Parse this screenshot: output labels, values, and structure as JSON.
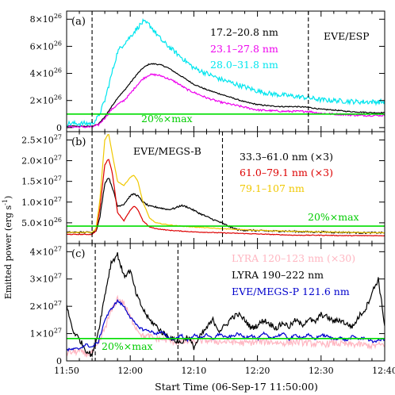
{
  "figure": {
    "ylabel": "Emitted power (erg s",
    "ylabel_sup": "-1",
    "ylabel_close": ")",
    "xlabel": "Start Time (06-Sep-17 11:50:00)",
    "x_ticks": [
      "11:50",
      "12:00",
      "12:10",
      "12:20",
      "12:30",
      "12:40"
    ]
  },
  "chart_data": [
    {
      "panel": "(a)",
      "type": "line",
      "instrument_label": "EVE/ESP",
      "threshold_label": "20%×max",
      "xlim": [
        0,
        50
      ],
      "ylim": [
        -3e+25,
        8.6e+26
      ],
      "y_ticks": [
        {
          "mant": "0",
          "exp": "",
          "v": 0
        },
        {
          "mant": "2×10",
          "exp": "26",
          "v": 2e+26
        },
        {
          "mant": "4×10",
          "exp": "26",
          "v": 4e+26
        },
        {
          "mant": "6×10",
          "exp": "26",
          "v": 6e+26
        },
        {
          "mant": "8×10",
          "exp": "26",
          "v": 8e+26
        }
      ],
      "threshold": 1e+26,
      "vlines": [
        4.0,
        38.0
      ],
      "series": [
        {
          "name": "17.2–20.8 nm",
          "color": "#000000",
          "noise": 4e+24,
          "x": [
            0,
            4,
            5,
            6,
            7,
            8,
            9,
            10,
            11,
            12,
            13,
            14,
            15,
            16,
            17,
            18,
            19,
            20,
            22,
            24,
            26,
            28,
            30,
            32,
            34,
            36,
            38,
            40,
            42,
            44,
            46,
            48,
            50
          ],
          "y": [
            1e+25,
            1e+25,
            2.5e+25,
            8e+25,
            1.5e+26,
            2.2e+26,
            2.7e+26,
            3.3e+26,
            3.9e+26,
            4.4e+26,
            4.7e+26,
            4.7e+26,
            4.6e+26,
            4.4e+26,
            4.1e+26,
            3.8e+26,
            3.5e+26,
            3.2e+26,
            2.8e+26,
            2.5e+26,
            2.2e+26,
            1.9e+26,
            1.7e+26,
            1.6e+26,
            1.55e+26,
            1.55e+26,
            1.5e+26,
            1.35e+26,
            1.3e+26,
            1.2e+26,
            1.15e+26,
            1.1e+26,
            1.1e+26
          ]
        },
        {
          "name": "23.1–27.8 nm",
          "color": "#ee00ee",
          "noise": 7e+24,
          "x": [
            0,
            4,
            5,
            6,
            7,
            8,
            9,
            10,
            11,
            12,
            13,
            14,
            15,
            16,
            17,
            18,
            19,
            20,
            22,
            24,
            26,
            28,
            30,
            32,
            34,
            36,
            38,
            40,
            42,
            44,
            46,
            48,
            50
          ],
          "y": [
            5e+24,
            5e+24,
            2e+25,
            7e+25,
            1.3e+26,
            1.7e+26,
            2e+26,
            2.5e+26,
            3.1e+26,
            3.6e+26,
            3.9e+26,
            3.9e+26,
            3.8e+26,
            3.6e+26,
            3.4e+26,
            3.1e+26,
            2.8e+26,
            2.6e+26,
            2.2e+26,
            1.9e+26,
            1.7e+26,
            1.5e+26,
            1.3e+26,
            1.25e+26,
            1.2e+26,
            1.2e+26,
            1.2e+26,
            1.05e+26,
            1e+26,
            9.5e+25,
            9e+25,
            9e+25,
            9e+25
          ]
        },
        {
          "name": "28.0–31.8 nm",
          "color": "#00e5ee",
          "noise": 1.8e+25,
          "x": [
            0,
            4,
            5,
            6,
            7,
            8,
            9,
            10,
            11,
            12,
            13,
            14,
            15,
            16,
            17,
            18,
            19,
            20,
            22,
            24,
            26,
            28,
            30,
            32,
            34,
            36,
            38,
            40,
            42,
            44,
            46,
            48,
            50
          ],
          "y": [
            3e+25,
            3e+25,
            8e+25,
            2e+26,
            3.8e+26,
            5.6e+26,
            6.2e+26,
            6.7e+26,
            7.3e+26,
            7.8e+26,
            7.6e+26,
            7e+26,
            6.4e+26,
            6e+26,
            5.6e+26,
            5.2e+26,
            4.8e+26,
            4.4e+26,
            4e+26,
            3.6e+26,
            3.3e+26,
            3e+26,
            2.7e+26,
            2.5e+26,
            2.4e+26,
            2.3e+26,
            2.2e+26,
            2.05e+26,
            2e+26,
            1.95e+26,
            1.9e+26,
            1.9e+26,
            1.9e+26
          ]
        }
      ]
    },
    {
      "panel": "(b)",
      "type": "line",
      "instrument_label": "EVE/MEGS-B",
      "threshold_label": "20%×max",
      "xlim": [
        0,
        50
      ],
      "ylim": [
        0,
        2.7e+27
      ],
      "y_ticks": [
        {
          "mant": "5.0×10",
          "exp": "26",
          "v": 5e+26
        },
        {
          "mant": "1.0×10",
          "exp": "27",
          "v": 1e+27
        },
        {
          "mant": "1.5×10",
          "exp": "27",
          "v": 1.5e+27
        },
        {
          "mant": "2.0×10",
          "exp": "27",
          "v": 2e+27
        },
        {
          "mant": "2.5×10",
          "exp": "27",
          "v": 2.5e+27
        }
      ],
      "threshold": 4.2e+26,
      "vlines": [
        4.0,
        24.5
      ],
      "series": [
        {
          "name": "33.3–61.0 nm (×3)",
          "color": "#000000",
          "noise": 2e+25,
          "x": [
            0,
            4,
            4.6,
            5.2,
            6,
            6.6,
            7.2,
            8,
            9,
            10,
            10.6,
            11.2,
            12,
            13,
            14,
            15,
            16,
            17,
            18,
            19,
            20,
            21,
            22,
            23,
            24,
            25,
            26,
            27,
            28,
            29,
            30,
            32,
            34,
            36,
            38,
            40,
            42,
            44,
            46,
            48,
            50
          ],
          "y": [
            2.7e+26,
            2.7e+26,
            3e+26,
            6e+26,
            1.45e+27,
            1.6e+27,
            1.35e+27,
            9e+26,
            9.5e+26,
            1.15e+27,
            1.2e+27,
            1.15e+27,
            1e+27,
            9e+26,
            8.8e+26,
            8.5e+26,
            8.2e+26,
            8.5e+26,
            9.2e+26,
            8.8e+26,
            8e+26,
            7.2e+26,
            6.5e+26,
            5.8e+26,
            5.2e+26,
            4.5e+26,
            3.8e+26,
            3.3e+26,
            3.2e+26,
            3.2e+26,
            3.1e+26,
            3e+26,
            3e+26,
            2.9e+26,
            2.8e+26,
            2.8e+26,
            2.7e+26,
            2.7e+26,
            2.6e+26,
            2.6e+26,
            2.6e+26
          ]
        },
        {
          "name": "61.0–79.1 nm (×3)",
          "color": "#dd0000",
          "noise": 8e+24,
          "x": [
            0,
            4,
            4.6,
            5.2,
            6,
            6.6,
            7.2,
            8,
            9,
            10,
            10.6,
            11.2,
            12,
            13,
            14,
            16,
            18,
            20,
            24,
            28,
            32,
            36,
            40,
            44,
            48,
            50
          ],
          "y": [
            2.2e+26,
            2.2e+26,
            3e+26,
            8e+26,
            1.9e+27,
            2.05e+27,
            1.7e+27,
            7.5e+26,
            5.5e+26,
            8e+26,
            9e+26,
            8.2e+26,
            5.5e+26,
            4e+26,
            3.6e+26,
            3.2e+26,
            3e+26,
            2.8e+26,
            2.6e+26,
            2.4e+26,
            2.2e+26,
            2e+26,
            2e+26,
            1.9e+26,
            1.9e+26,
            1.9e+26
          ]
        },
        {
          "name": "79.1–107 nm",
          "color": "#f0c800",
          "noise": 8e+24,
          "x": [
            0,
            4,
            4.6,
            5.2,
            6,
            6.6,
            7.2,
            8,
            9,
            10,
            10.6,
            11.2,
            12,
            13,
            14,
            16,
            18,
            20,
            24,
            28,
            32,
            36,
            40,
            44,
            48,
            50
          ],
          "y": [
            2.7e+26,
            2.7e+26,
            3.5e+26,
            1e+27,
            2.5e+27,
            2.65e+27,
            2.15e+27,
            1.5e+27,
            1.4e+27,
            1.6e+27,
            1.65e+27,
            1.5e+27,
            1e+27,
            6.2e+26,
            5e+26,
            4.5e+26,
            4.2e+26,
            4e+26,
            3.6e+26,
            3.3e+26,
            3.1e+26,
            2.9e+26,
            2.8e+26,
            2.7e+26,
            2.6e+26,
            2.6e+26
          ]
        }
      ]
    },
    {
      "panel": "(c)",
      "type": "line",
      "threshold_label": "20%×max",
      "xlim": [
        0,
        50
      ],
      "ylim": [
        0,
        4.3e+27
      ],
      "y_ticks": [
        {
          "mant": "0",
          "exp": "",
          "v": 0
        },
        {
          "mant": "1×10",
          "exp": "27",
          "v": 1e+27
        },
        {
          "mant": "2×10",
          "exp": "27",
          "v": 2e+27
        },
        {
          "mant": "3×10",
          "exp": "27",
          "v": 3e+27
        },
        {
          "mant": "4×10",
          "exp": "27",
          "v": 4e+27
        }
      ],
      "threshold": 8.2e+26,
      "vlines": [
        4.5,
        17.5
      ],
      "series": [
        {
          "name": "LYRA 120–123 nm (×30)",
          "color": "#ffb6c1",
          "noise": 1.2e+26,
          "x": [
            0,
            2,
            3,
            4,
            5,
            6,
            7,
            8,
            9,
            10,
            11,
            12,
            13,
            14,
            15,
            16,
            17,
            18,
            20,
            22,
            24,
            26,
            28,
            30,
            32,
            34,
            36,
            38,
            40,
            42,
            44,
            46,
            48,
            50
          ],
          "y": [
            3e+26,
            3.5e+26,
            2.5e+26,
            3e+26,
            6e+26,
            1.2e+27,
            1.8e+27,
            2.3e+27,
            2.1e+27,
            1.6e+27,
            1.2e+27,
            9e+26,
            9e+26,
            8e+26,
            8e+26,
            7.5e+26,
            7e+26,
            7e+26,
            7e+26,
            7.5e+26,
            7e+26,
            7e+26,
            6.5e+26,
            7e+26,
            7e+26,
            6.5e+26,
            7e+26,
            6.5e+26,
            6e+26,
            6.5e+26,
            6e+26,
            6e+26,
            5.5e+26,
            6e+26
          ]
        },
        {
          "name": "LYRA 190–222 nm",
          "color": "#000000",
          "noise": 1e+26,
          "x": [
            0,
            1,
            2,
            3,
            4,
            5,
            6,
            7,
            8,
            9,
            10,
            11,
            12,
            13,
            14,
            15,
            16,
            17,
            18,
            19,
            20,
            21,
            22,
            23,
            24,
            25,
            26,
            27,
            28,
            29,
            30,
            31,
            32,
            33,
            34,
            35,
            36,
            37,
            38,
            39,
            40,
            41,
            42,
            43,
            44,
            45,
            46,
            47,
            48,
            49,
            50
          ],
          "y": [
            2e+27,
            1.1e+27,
            8e+26,
            4e+26,
            2e+26,
            1.1e+27,
            2.4e+27,
            3.6e+27,
            3.9e+27,
            3.1e+27,
            3.3e+27,
            2.4e+27,
            1.9e+27,
            1.5e+27,
            1.3e+27,
            1.05e+27,
            9e+26,
            7.5e+26,
            6.5e+26,
            9e+26,
            5e+26,
            9e+26,
            1.2e+27,
            1.5e+27,
            1.1e+27,
            1.3e+27,
            1.6e+27,
            1.7e+27,
            1.5e+27,
            1.2e+27,
            1.3e+27,
            1.5e+27,
            1.35e+27,
            1.2e+27,
            1.4e+27,
            1.25e+27,
            1.5e+27,
            1.3e+27,
            1.55e+27,
            1.4e+27,
            1.7e+27,
            1.6e+27,
            1.45e+27,
            1.5e+27,
            1.35e+27,
            1.25e+27,
            1.65e+27,
            1.9e+27,
            2.5e+27,
            3e+27,
            1.3e+27
          ]
        },
        {
          "name": "EVE/MEGS-P 121.6 nm",
          "color": "#0000cc",
          "noise": 5e+25,
          "x": [
            0,
            2,
            3,
            4,
            5,
            6,
            7,
            8,
            9,
            10,
            11,
            12,
            13,
            14,
            15,
            16,
            17,
            18,
            19,
            20,
            21,
            22,
            23,
            24,
            25,
            26,
            27,
            28,
            29,
            30,
            31,
            32,
            33,
            34,
            35,
            36,
            37,
            38,
            39,
            40,
            41,
            42,
            43,
            44,
            45,
            46,
            47,
            48,
            49,
            50
          ],
          "y": [
            4e+26,
            4.5e+26,
            6e+26,
            5e+26,
            7e+26,
            1.5e+27,
            1.9e+27,
            2.2e+27,
            2e+27,
            1.6e+27,
            1.3e+27,
            1.15e+27,
            1.1e+27,
            1e+27,
            1.05e+27,
            8.5e+26,
            8e+26,
            9.5e+26,
            7.5e+26,
            9.5e+26,
            8.5e+26,
            9.5e+26,
            8e+26,
            1e+27,
            8.5e+26,
            9e+26,
            1e+27,
            8.5e+26,
            9.5e+26,
            8e+26,
            1e+27,
            8.5e+26,
            9e+26,
            1e+27,
            8e+26,
            9.5e+26,
            8.5e+26,
            9.5e+26,
            8e+26,
            9.5e+26,
            9e+26,
            8e+26,
            8.5e+26,
            7.5e+26,
            9e+26,
            8e+26,
            8.5e+26,
            7e+26,
            7.5e+26,
            8e+26
          ]
        }
      ]
    }
  ]
}
